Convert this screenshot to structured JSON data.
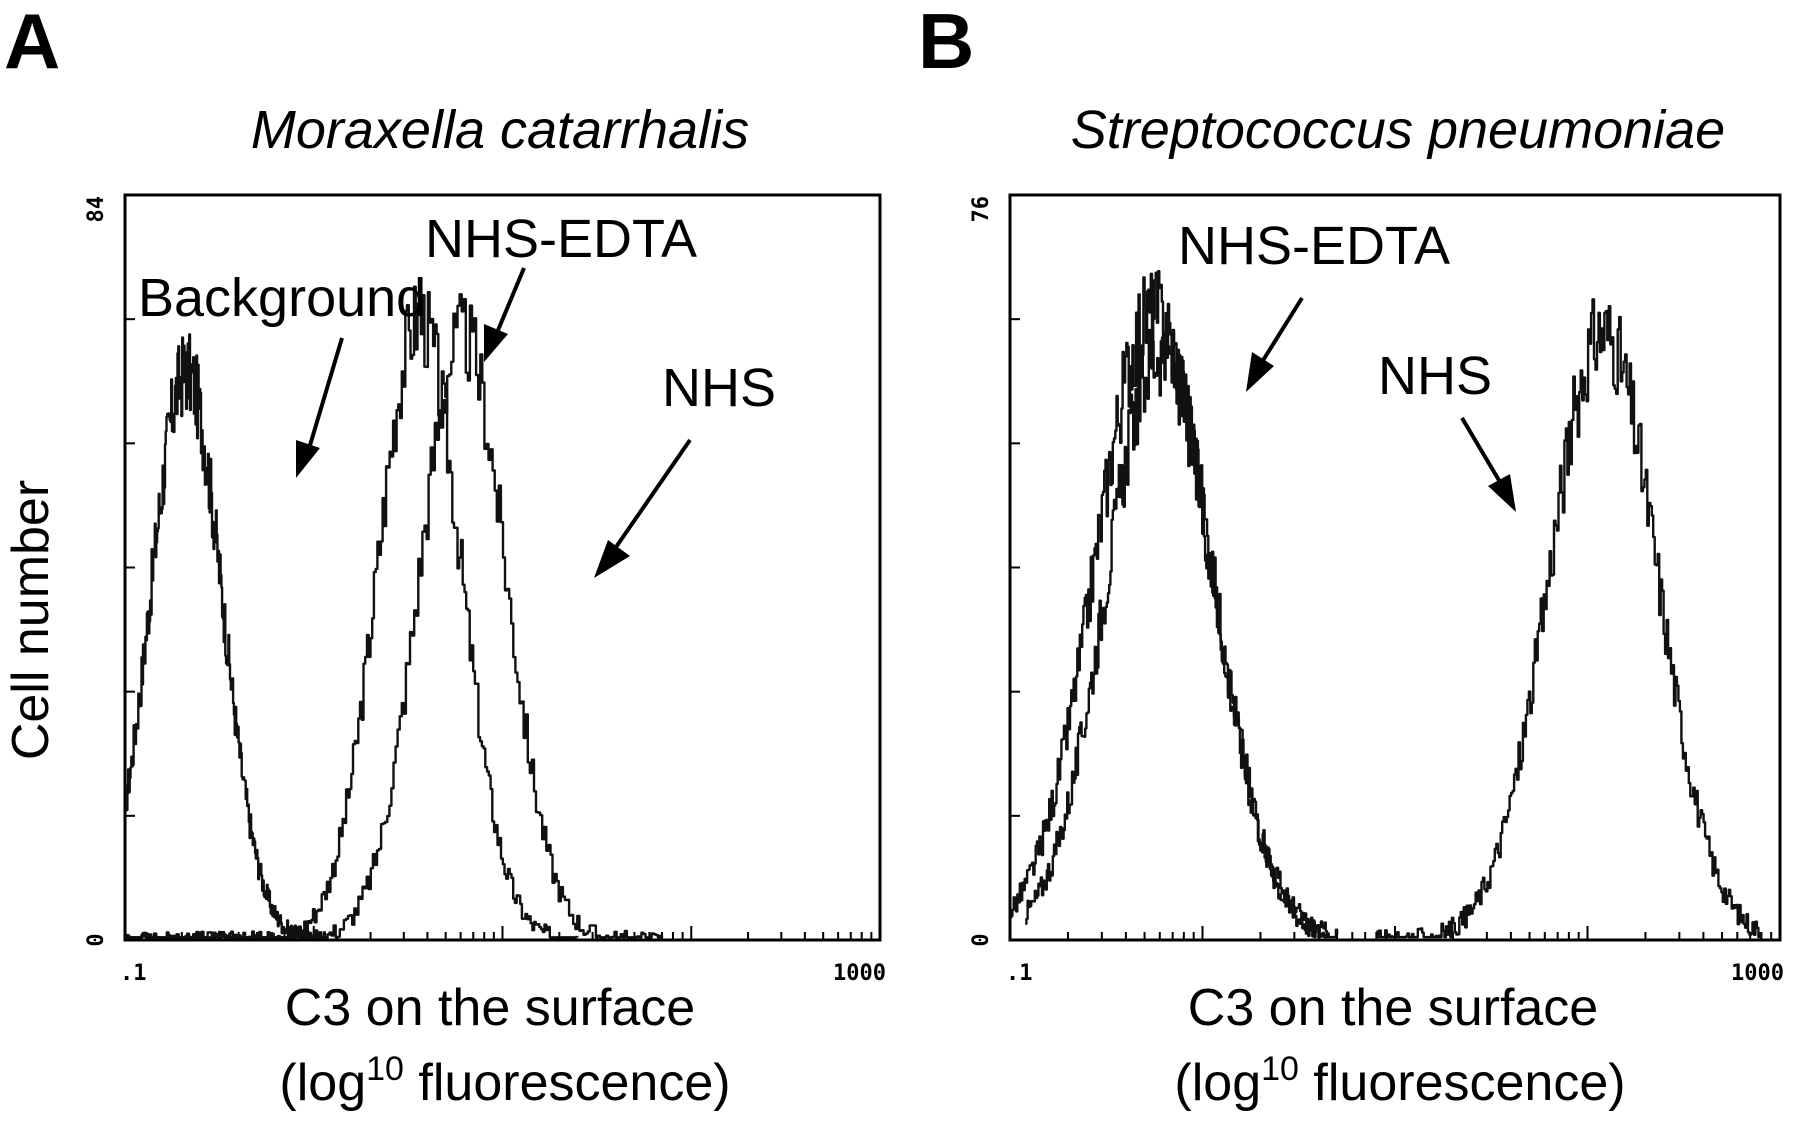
{
  "figure": {
    "ylabel": "Cell number",
    "xlabel_line1": "C3 on the surface",
    "xlabel_line2_pre": "(log",
    "xlabel_line2_sup": "10",
    "xlabel_line2_post": " fluorescence)"
  },
  "chart_data": [
    {
      "type": "line",
      "panel": "A",
      "title": "Moraxella catarrhalis",
      "xlabel": "C3 on the surface (log10 fluorescence)",
      "ylabel": "Cell number",
      "xscale": "log",
      "xlim": [
        0.1,
        1000
      ],
      "ylim": [
        0,
        84
      ],
      "xtick_labels": [
        ".1",
        "1000"
      ],
      "ytick_labels": [
        "0",
        "84"
      ],
      "series": [
        {
          "name": "Background",
          "peak_x": 0.21,
          "peak_y": 64,
          "log_sd": 0.19,
          "x_min": 0.1,
          "x_max": 1.2
        },
        {
          "name": "NHS-EDTA",
          "peak_x": 3.6,
          "peak_y": 70,
          "log_sd": 0.22,
          "x_min": 0.1,
          "x_max": 25
        },
        {
          "name": "NHS",
          "peak_x": 6.1,
          "peak_y": 68,
          "log_sd": 0.23,
          "x_min": 0.1,
          "x_max": 70
        }
      ],
      "annotations": [
        {
          "label": "Background",
          "series": "Background"
        },
        {
          "label": "NHS-EDTA",
          "series": "NHS-EDTA"
        },
        {
          "label": "NHS",
          "series": "NHS"
        }
      ]
    },
    {
      "type": "line",
      "panel": "B",
      "title": "Streptococcus pneumoniae",
      "xlabel": "C3 on the surface (log10 fluorescence)",
      "ylabel": "Cell number",
      "xscale": "log",
      "xlim": [
        0.1,
        1000
      ],
      "ylim": [
        0,
        76
      ],
      "xtick_labels": [
        ".1",
        "1000"
      ],
      "ytick_labels": [
        "0",
        "76"
      ],
      "series": [
        {
          "name": "NHS-EDTA",
          "peak_x": 0.55,
          "peak_y": 64,
          "log_sd": 0.3,
          "x_min": 0.1,
          "x_max": 4.5
        },
        {
          "name": "NHS-EDTA",
          "peak_x": 0.6,
          "peak_y": 60,
          "log_sd": 0.28,
          "x_min": 0.12,
          "x_max": 5
        },
        {
          "name": "NHS",
          "peak_x": 120,
          "peak_y": 62,
          "log_sd": 0.28,
          "x_min": 8,
          "x_max": 800
        }
      ],
      "annotations": [
        {
          "label": "NHS-EDTA",
          "series": "NHS-EDTA"
        },
        {
          "label": "NHS",
          "series": "NHS"
        }
      ]
    }
  ]
}
